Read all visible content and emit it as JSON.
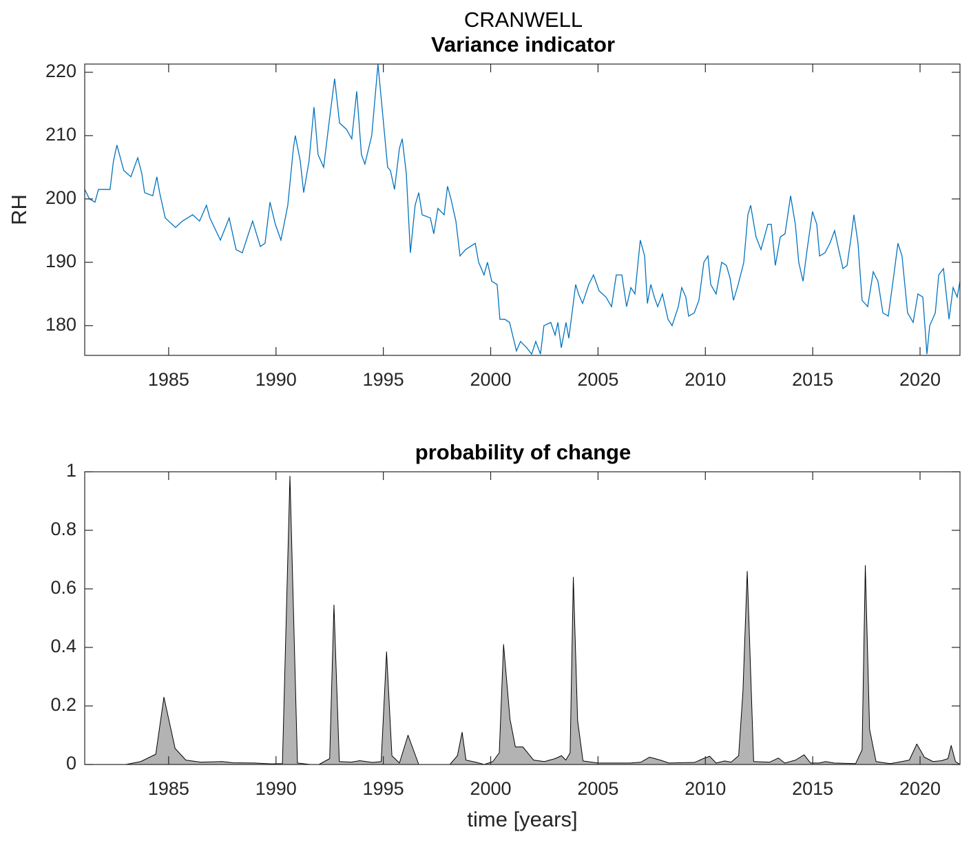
{
  "title": "CRANWELL",
  "chart_data": [
    {
      "type": "line",
      "title": "Variance indicator",
      "ylabel": "RH",
      "color": "#0072bd",
      "xlim": [
        1981.09,
        2021.86
      ],
      "xticks": [
        1985,
        1990,
        1995,
        2000,
        2005,
        2010,
        2015,
        2020
      ],
      "ylim": [
        175.3,
        221.3
      ],
      "yticks": [
        180,
        190,
        200,
        210,
        220
      ],
      "x": [
        1981.09,
        1981.31,
        1981.57,
        1981.73,
        1982.27,
        1982.43,
        1982.59,
        1982.79,
        1982.91,
        1983.24,
        1983.56,
        1983.75,
        1983.88,
        1984.26,
        1984.45,
        1984.58,
        1984.84,
        1985.32,
        1985.64,
        1986.12,
        1986.44,
        1986.76,
        1986.92,
        1987.41,
        1987.82,
        1988.14,
        1988.43,
        1988.91,
        1989.27,
        1989.49,
        1989.72,
        1989.97,
        1990.23,
        1990.55,
        1990.81,
        1990.9,
        1991.13,
        1991.29,
        1991.54,
        1991.77,
        1991.96,
        1992.22,
        1992.47,
        1992.73,
        1992.96,
        1993.28,
        1993.53,
        1993.76,
        1993.98,
        1994.14,
        1994.46,
        1994.75,
        1994.98,
        1995.2,
        1995.33,
        1995.52,
        1995.75,
        1995.88,
        1996.07,
        1996.26,
        1996.48,
        1996.65,
        1996.81,
        1997.19,
        1997.35,
        1997.54,
        1997.83,
        1997.99,
        1998.15,
        1998.38,
        1998.57,
        1998.83,
        1999.28,
        1999.44,
        1999.69,
        1999.85,
        2000.05,
        2000.3,
        2000.43,
        2000.66,
        2000.88,
        2001.2,
        2001.39,
        2001.68,
        2001.91,
        2002.1,
        2002.32,
        2002.48,
        2002.8,
        2003.0,
        2003.13,
        2003.29,
        2003.51,
        2003.64,
        2003.96,
        2004.09,
        2004.28,
        2004.57,
        2004.79,
        2005.05,
        2005.37,
        2005.63,
        2005.85,
        2006.11,
        2006.33,
        2006.53,
        2006.72,
        2006.85,
        2006.97,
        2007.17,
        2007.3,
        2007.46,
        2007.62,
        2007.78,
        2008.0,
        2008.26,
        2008.45,
        2008.74,
        2008.9,
        2009.09,
        2009.22,
        2009.48,
        2009.7,
        2009.93,
        2010.12,
        2010.25,
        2010.5,
        2010.76,
        2010.98,
        2011.15,
        2011.31,
        2011.53,
        2011.79,
        2011.98,
        2012.11,
        2012.36,
        2012.59,
        2012.75,
        2012.91,
        2013.07,
        2013.26,
        2013.49,
        2013.71,
        2013.97,
        2014.19,
        2014.35,
        2014.55,
        2014.74,
        2014.99,
        2015.19,
        2015.32,
        2015.57,
        2015.8,
        2016.02,
        2016.21,
        2016.41,
        2016.6,
        2016.79,
        2016.92,
        2017.11,
        2017.3,
        2017.56,
        2017.82,
        2018.04,
        2018.27,
        2018.52,
        2018.78,
        2018.97,
        2019.16,
        2019.42,
        2019.68,
        2019.9,
        2020.13,
        2020.32,
        2020.45,
        2020.71,
        2020.87,
        2021.09,
        2021.35,
        2021.54,
        2021.73,
        2021.86
      ],
      "values": [
        201.5,
        200,
        199.5,
        201.5,
        201.5,
        206,
        208.5,
        206,
        204.5,
        203.5,
        206.5,
        204,
        201,
        200.5,
        203.5,
        201,
        197,
        195.5,
        196.5,
        197.5,
        196.5,
        199,
        197,
        193.5,
        197,
        192,
        191.5,
        196.5,
        192.5,
        193,
        199.5,
        196,
        193.5,
        199,
        208,
        210,
        206,
        201,
        206,
        214.5,
        207,
        205,
        212,
        219,
        212,
        211,
        209.5,
        217,
        207,
        205.5,
        210,
        221.3,
        213,
        205,
        204.5,
        201.5,
        208,
        209.5,
        204,
        191.5,
        199,
        201,
        197.5,
        197,
        194.5,
        198.5,
        197.5,
        202,
        200,
        196.5,
        191,
        192,
        193,
        190,
        188,
        190,
        187,
        186.5,
        181,
        181,
        180.5,
        176,
        177.5,
        176.5,
        175.5,
        177.5,
        175.5,
        180,
        180.5,
        178.5,
        180.5,
        176.5,
        180.5,
        178,
        186.5,
        185,
        183.5,
        186.5,
        188,
        185.5,
        184.5,
        183,
        188,
        188,
        183,
        186,
        185,
        189.5,
        193.5,
        191,
        183.5,
        186.5,
        184.5,
        183,
        185,
        181,
        180,
        183,
        186,
        184.5,
        181.5,
        182,
        184,
        190,
        191,
        186.5,
        185,
        190,
        189.5,
        187.5,
        184,
        186.5,
        190,
        197.5,
        199,
        194,
        192,
        194,
        196,
        196,
        189.5,
        194,
        194.5,
        200.5,
        196,
        190,
        187,
        192,
        198,
        196,
        191,
        191.5,
        193,
        195,
        192,
        189,
        189.5,
        194,
        197.5,
        193,
        184,
        183,
        188.5,
        187,
        182,
        181.5,
        188,
        193,
        191,
        182,
        180.5,
        185,
        184.5,
        175.5,
        180,
        182,
        188,
        189,
        181,
        186,
        184.5,
        187
      ]
    },
    {
      "type": "area",
      "title": "probability of change",
      "xlabel": "time [years]",
      "color": "#b3b3b3",
      "edge_color": "#000000",
      "xlim": [
        1981.09,
        2021.86
      ],
      "xticks": [
        1985,
        1990,
        1995,
        2000,
        2005,
        2010,
        2015,
        2020
      ],
      "ylim": [
        0,
        1
      ],
      "yticks": [
        0,
        0.2,
        0.4,
        0.6,
        0.8,
        1
      ],
      "x": [
        1981.1,
        1983.0,
        1983.7,
        1984.4,
        1984.78,
        1985.3,
        1985.8,
        1986.5,
        1987.5,
        1988.0,
        1989.0,
        1989.8,
        1990.3,
        1990.65,
        1991.0,
        1991.6,
        1992.0,
        1992.5,
        1992.7,
        1992.95,
        1993.5,
        1993.9,
        1994.5,
        1994.9,
        1995.15,
        1995.4,
        1995.75,
        1996.15,
        1996.65,
        1998.1,
        1998.45,
        1998.67,
        1998.85,
        1999.3,
        1999.7,
        2000.1,
        2000.4,
        2000.6,
        2000.9,
        2001.15,
        2001.5,
        2002.0,
        2002.5,
        2003.0,
        2003.3,
        2003.5,
        2003.7,
        2003.85,
        2004.05,
        2004.3,
        2005.0,
        2006.5,
        2007.0,
        2007.4,
        2007.9,
        2008.3,
        2009.5,
        2009.9,
        2010.2,
        2010.5,
        2010.9,
        2011.2,
        2011.55,
        2011.75,
        2011.95,
        2012.25,
        2013.0,
        2013.4,
        2013.7,
        2014.2,
        2014.6,
        2014.9,
        2015.3,
        2015.6,
        2016.0,
        2017.0,
        2017.3,
        2017.45,
        2017.65,
        2017.95,
        2018.6,
        2019.0,
        2019.5,
        2019.85,
        2020.2,
        2020.6,
        2021.0,
        2021.3,
        2021.45,
        2021.65,
        2021.86
      ],
      "values": [
        0,
        0,
        0.01,
        0.035,
        0.23,
        0.055,
        0.015,
        0.008,
        0.01,
        0.006,
        0.005,
        0.002,
        0.003,
        0.985,
        0.005,
        0,
        0,
        0.02,
        0.545,
        0.01,
        0.008,
        0.013,
        0.007,
        0.01,
        0.385,
        0.03,
        0.005,
        0.1,
        0,
        0,
        0.03,
        0.11,
        0.015,
        0.008,
        0,
        0.01,
        0.04,
        0.41,
        0.155,
        0.06,
        0.06,
        0.015,
        0.01,
        0.02,
        0.03,
        0.015,
        0.04,
        0.64,
        0.15,
        0.012,
        0.005,
        0.005,
        0.008,
        0.025,
        0.015,
        0.005,
        0.007,
        0.02,
        0.028,
        0.005,
        0.012,
        0.008,
        0.03,
        0.25,
        0.66,
        0.01,
        0.008,
        0.022,
        0.005,
        0.015,
        0.033,
        0.005,
        0.005,
        0.01,
        0.005,
        0.003,
        0.05,
        0.68,
        0.12,
        0.01,
        0.003,
        0.008,
        0.015,
        0.07,
        0.025,
        0.01,
        0.013,
        0.02,
        0.065,
        0.01,
        0
      ]
    }
  ]
}
